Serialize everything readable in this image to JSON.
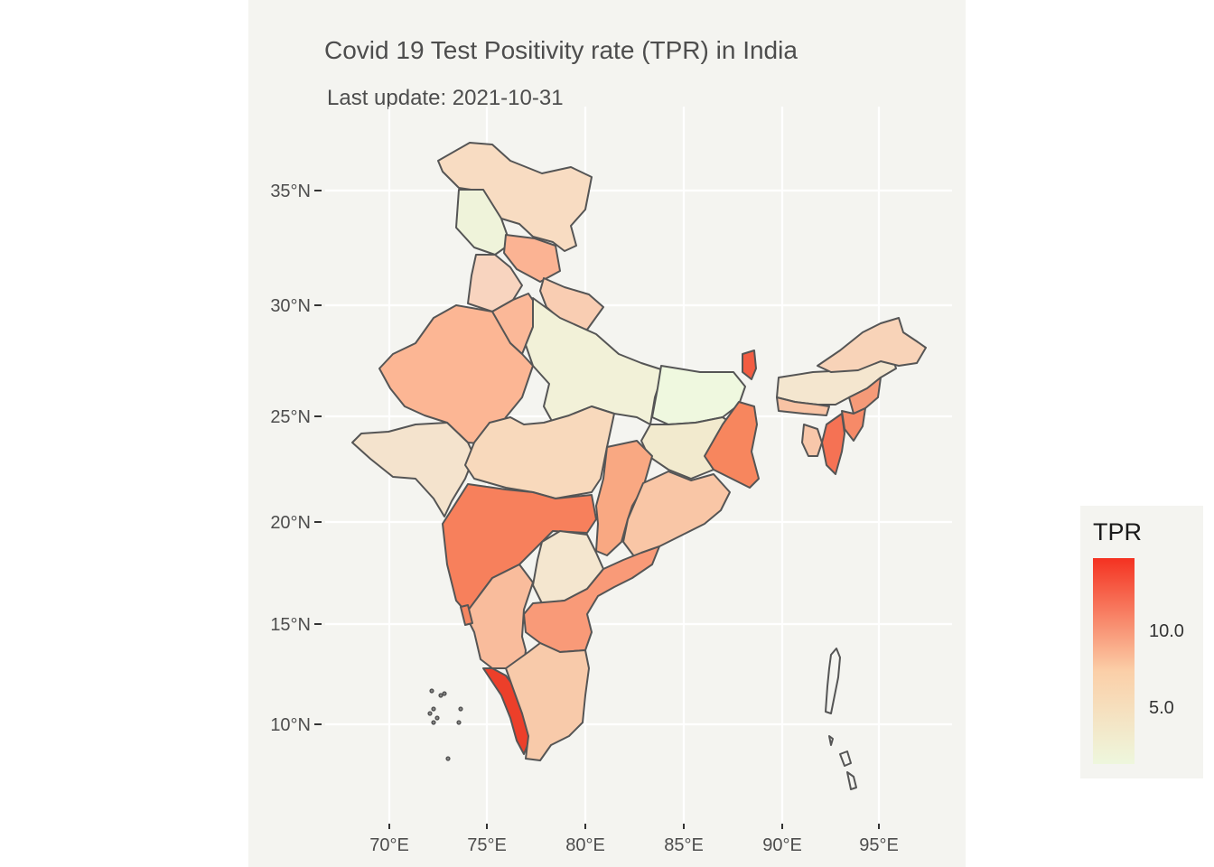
{
  "title": "Covid 19 Test Positivity rate (TPR) in India",
  "subtitle": "Last update: 2021-10-31",
  "axes": {
    "x_ticks": [
      "70°E",
      "75°E",
      "80°E",
      "85°E",
      "90°E",
      "95°E"
    ],
    "y_ticks": [
      "35°N",
      "30°N",
      "25°N",
      "20°N",
      "15°N",
      "10°N"
    ]
  },
  "legend": {
    "title": "TPR",
    "ticks": [
      "10.0",
      "5.0"
    ],
    "color_low": "#eef7dd",
    "color_mid": "#fbcfa8",
    "color_high": "#f43221"
  },
  "colors": {
    "panel_background": "#f4f4f0",
    "gridline": "#ffffff",
    "border": "#555555"
  },
  "regions": [
    {
      "name": "Ladakh / Jammu & Kashmir",
      "color": "#f8dcc2"
    },
    {
      "name": "Kargil",
      "color": "#eff3da"
    },
    {
      "name": "Himachal Pradesh",
      "color": "#fbb393"
    },
    {
      "name": "Punjab",
      "color": "#f8d4bf"
    },
    {
      "name": "Uttarakhand",
      "color": "#f9cdb2"
    },
    {
      "name": "Haryana",
      "color": "#fbb898"
    },
    {
      "name": "Rajasthan",
      "color": "#fcb694"
    },
    {
      "name": "Uttar Pradesh",
      "color": "#f2f1d8"
    },
    {
      "name": "Bihar",
      "color": "#eff8df"
    },
    {
      "name": "Gujarat",
      "color": "#f4e3cd"
    },
    {
      "name": "Madhya Pradesh",
      "color": "#f8d9bc"
    },
    {
      "name": "Jharkhand",
      "color": "#f2eace"
    },
    {
      "name": "West Bengal",
      "color": "#f7865e"
    },
    {
      "name": "Sikkim",
      "color": "#f25c42"
    },
    {
      "name": "Maharashtra",
      "color": "#f7805c"
    },
    {
      "name": "Chhattisgarh",
      "color": "#f9a882"
    },
    {
      "name": "Odisha",
      "color": "#f9c6a6"
    },
    {
      "name": "Telangana",
      "color": "#f4e6cf"
    },
    {
      "name": "Andhra Pradesh",
      "color": "#f99a78"
    },
    {
      "name": "Karnataka",
      "color": "#f9bc9c"
    },
    {
      "name": "Goa",
      "color": "#f58560"
    },
    {
      "name": "Kerala",
      "color": "#ec3f2a"
    },
    {
      "name": "Tamil Nadu",
      "color": "#f8caaa"
    },
    {
      "name": "Assam",
      "color": "#f4e6cf"
    },
    {
      "name": "Arunachal Pradesh",
      "color": "#f8d3b8"
    },
    {
      "name": "Meghalaya",
      "color": "#f8c3a4"
    },
    {
      "name": "Nagaland",
      "color": "#f59a78"
    },
    {
      "name": "Manipur",
      "color": "#f68a68"
    },
    {
      "name": "Mizoram",
      "color": "#f57254"
    },
    {
      "name": "Tripura",
      "color": "#f8c7aa"
    },
    {
      "name": "Andaman & Nicobar Islands",
      "color": "#f4f4f0"
    },
    {
      "name": "Lakshadweep",
      "color": "#f4f4f0"
    }
  ]
}
